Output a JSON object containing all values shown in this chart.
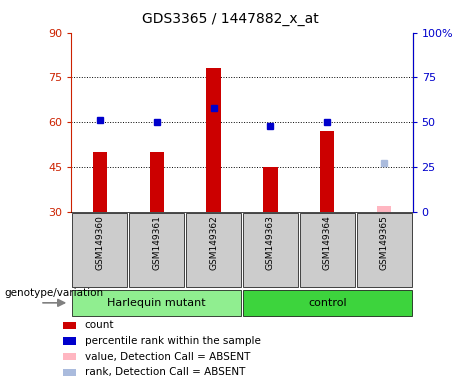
{
  "title": "GDS3365 / 1447882_x_at",
  "samples": [
    "GSM149360",
    "GSM149361",
    "GSM149362",
    "GSM149363",
    "GSM149364",
    "GSM149365"
  ],
  "count_values": [
    50,
    50,
    78,
    45,
    57,
    32
  ],
  "rank_values": [
    51,
    50,
    58,
    48,
    50,
    27
  ],
  "absent_flags": [
    false,
    false,
    false,
    false,
    false,
    true
  ],
  "ylim_left": [
    30,
    90
  ],
  "ylim_right": [
    0,
    100
  ],
  "yticks_left": [
    30,
    45,
    60,
    75,
    90
  ],
  "yticks_right": [
    0,
    25,
    50,
    75,
    100
  ],
  "ytick_labels_left": [
    "30",
    "45",
    "60",
    "75",
    "90"
  ],
  "ytick_labels_right": [
    "0",
    "25",
    "50",
    "75",
    "100%"
  ],
  "genotype_groups": [
    {
      "label": "Harlequin mutant",
      "samples": [
        0,
        1,
        2
      ],
      "color": "#90EE90"
    },
    {
      "label": "control",
      "samples": [
        3,
        4,
        5
      ],
      "color": "#3DD43D"
    }
  ],
  "bar_width": 0.25,
  "marker_size": 5,
  "count_color": "#CC0000",
  "rank_color": "#0000CC",
  "absent_count_color": "#FFB6C1",
  "absent_rank_color": "#AABBDD",
  "plot_bg": "#FFFFFF",
  "left_tick_color": "#CC2200",
  "right_tick_color": "#0000CC",
  "label_area_color": "#CCCCCC",
  "genotype_label": "genotype/variation"
}
